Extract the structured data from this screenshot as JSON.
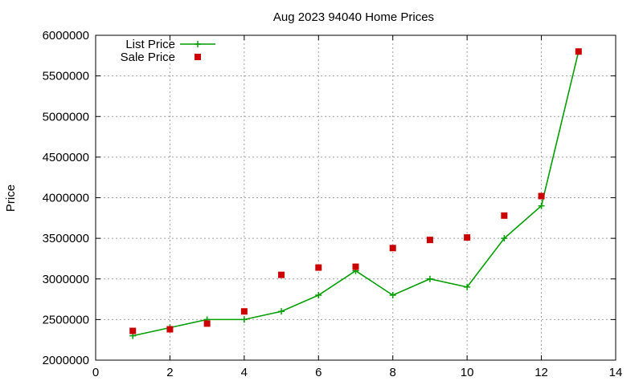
{
  "chart_data": {
    "type": "line",
    "title": "Aug 2023 94040 Home Prices",
    "xlabel": "",
    "ylabel": "Price",
    "xlim": [
      0,
      14
    ],
    "ylim": [
      2000000,
      6000000
    ],
    "xticks": [
      "0",
      "2",
      "4",
      "6",
      "8",
      "10",
      "12",
      "14"
    ],
    "yticks": [
      "2000000",
      "2500000",
      "3000000",
      "3500000",
      "4000000",
      "4500000",
      "5000000",
      "5500000",
      "6000000"
    ],
    "grid": true,
    "legend_position": "top-left",
    "series": [
      {
        "name": "List Price",
        "style": "linespoints",
        "marker": "plus",
        "color": "#009e00",
        "x": [
          1,
          2,
          3,
          4,
          5,
          6,
          7,
          8,
          9,
          10,
          11,
          12,
          13
        ],
        "y": [
          2300000,
          2400000,
          2500000,
          2500000,
          2600000,
          2800000,
          3100000,
          2800000,
          3000000,
          2900000,
          3500000,
          3900000,
          5800000
        ]
      },
      {
        "name": "Sale Price",
        "style": "points",
        "marker": "square",
        "color": "#cc0000",
        "x": [
          1,
          2,
          3,
          4,
          5,
          6,
          7,
          8,
          9,
          10,
          11,
          12,
          13
        ],
        "y": [
          2360000,
          2380000,
          2450000,
          2600000,
          3050000,
          3140000,
          3150000,
          3380000,
          3480000,
          3510000,
          3780000,
          4020000,
          5800000
        ]
      }
    ]
  }
}
